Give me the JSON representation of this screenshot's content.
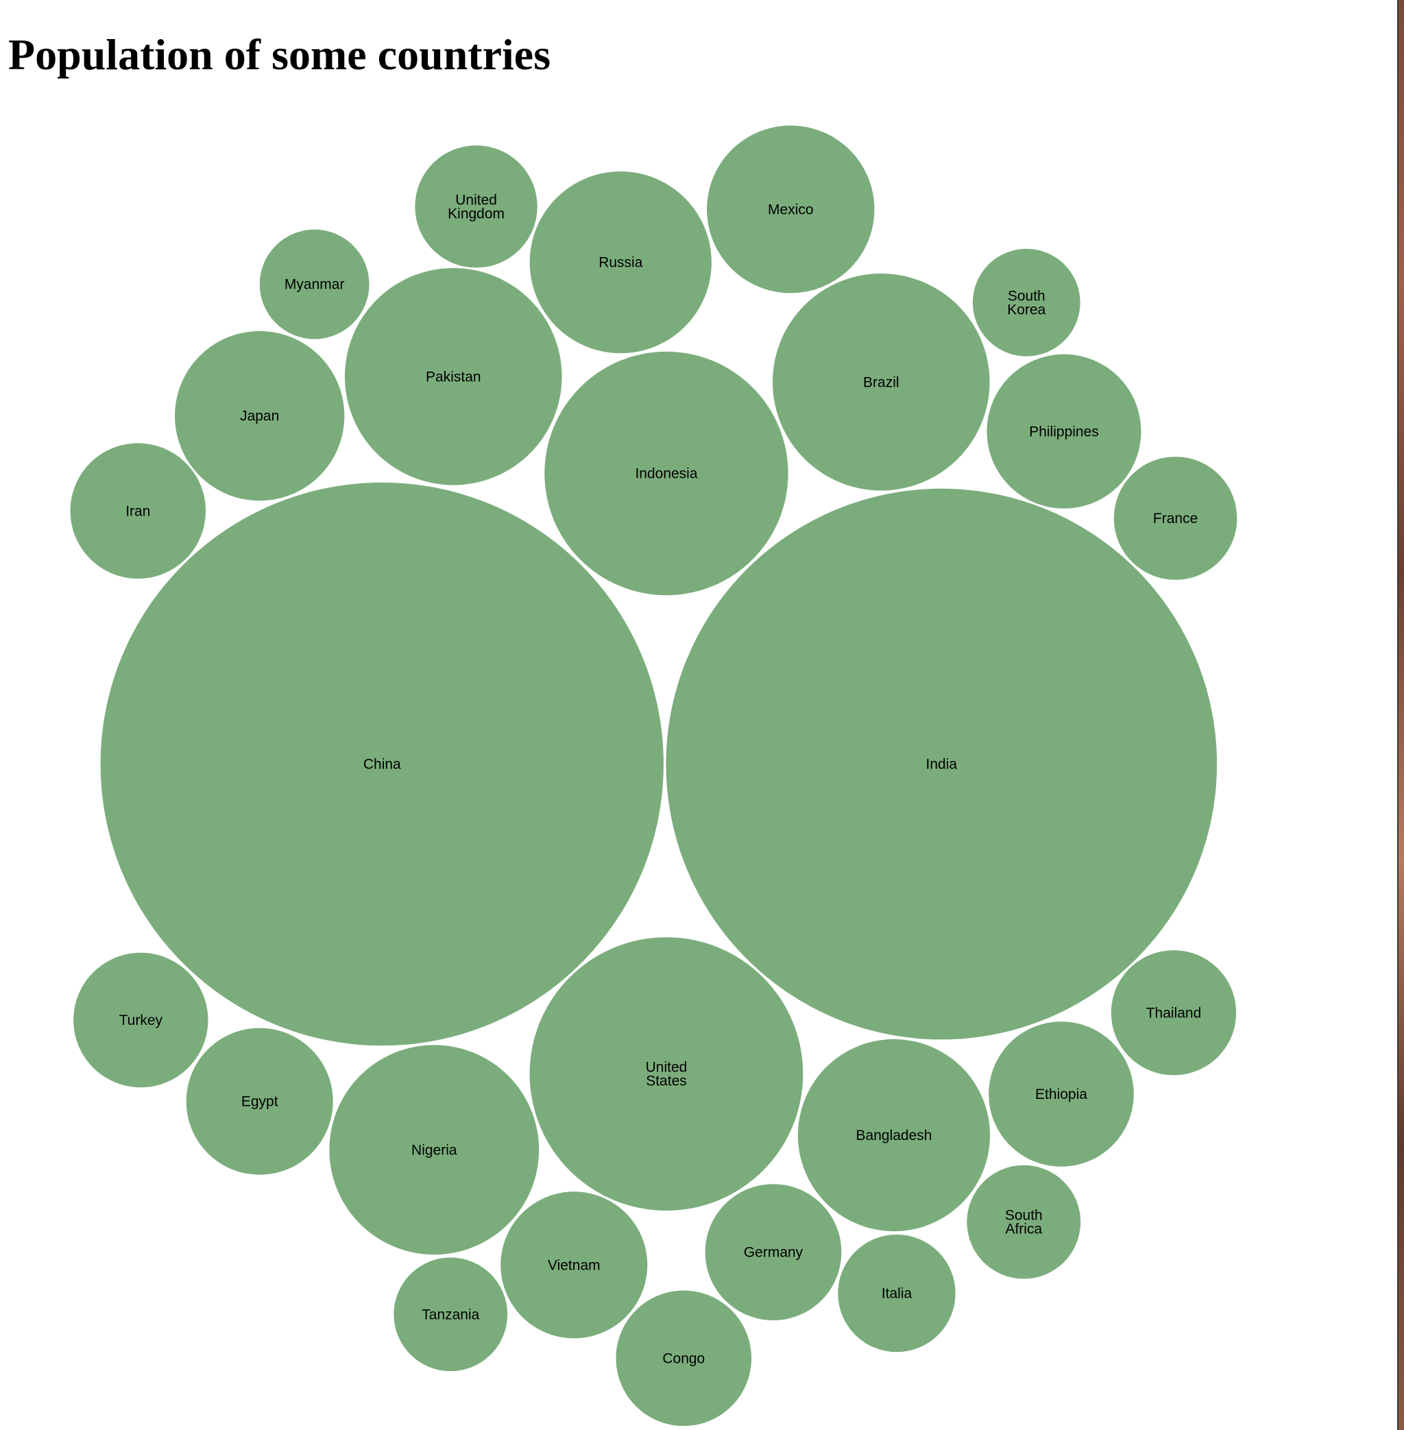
{
  "title": "Population of some countries",
  "chart_data": {
    "type": "bubble",
    "title": "Population of some countries",
    "size_unit": "relative population (bubble area, estimated)",
    "bubble_color": "#7bad7c",
    "label_color": "#000000",
    "items": [
      {
        "name": "China",
        "value": 1400
      },
      {
        "name": "India",
        "value": 1340
      },
      {
        "name": "United States",
        "value": 330
      },
      {
        "name": "Indonesia",
        "value": 262
      },
      {
        "name": "Pakistan",
        "value": 208
      },
      {
        "name": "Brazil",
        "value": 208
      },
      {
        "name": "Nigeria",
        "value": 194
      },
      {
        "name": "Bangladesh",
        "value": 163
      },
      {
        "name": "Russia",
        "value": 146
      },
      {
        "name": "Mexico",
        "value": 124
      },
      {
        "name": "Japan",
        "value": 127
      },
      {
        "name": "Philippines",
        "value": 105
      },
      {
        "name": "Ethiopia",
        "value": 93
      },
      {
        "name": "Egypt",
        "value": 95
      },
      {
        "name": "Vietnam",
        "value": 95
      },
      {
        "name": "Congo",
        "value": 81
      },
      {
        "name": "Germany",
        "value": 82
      },
      {
        "name": "Iran",
        "value": 81
      },
      {
        "name": "Turkey",
        "value": 80
      },
      {
        "name": "Thailand",
        "value": 69
      },
      {
        "name": "France",
        "value": 67
      },
      {
        "name": "United Kingdom",
        "value": 66
      },
      {
        "name": "Italia",
        "value": 61
      },
      {
        "name": "Tanzania",
        "value": 57
      },
      {
        "name": "South Africa",
        "value": 57
      },
      {
        "name": "Myanmar",
        "value": 53
      },
      {
        "name": "South Korea",
        "value": 51
      }
    ]
  }
}
